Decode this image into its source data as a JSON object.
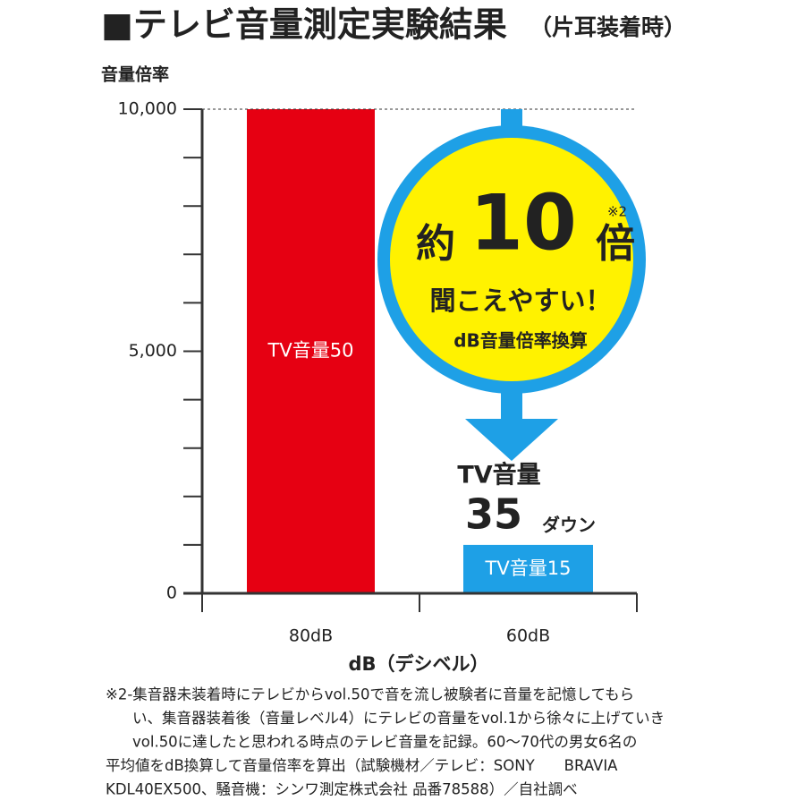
{
  "chart_data": {
    "type": "bar",
    "title": "■テレビ音量測定実験結果",
    "subtitle": "（片耳装着時）",
    "y_label": "音量倍率",
    "x_label": "dB（デシベル）",
    "categories": [
      "80dB",
      "60dB"
    ],
    "values": [
      10000,
      1000
    ],
    "bar_labels": [
      "TV音量50",
      "TV音量15"
    ],
    "colors": [
      "#e60012",
      "#1ea0e6"
    ],
    "ylim": [
      0,
      10000
    ],
    "yticks": [
      {
        "value": 0,
        "label": "0"
      },
      {
        "value": 5000,
        "label": "5,000"
      },
      {
        "value": 10000,
        "label": "10,000"
      }
    ],
    "yticks_minor": [
      1000,
      2000,
      3000,
      4000,
      6000,
      7000,
      8000,
      9000
    ],
    "annotations": {
      "approx": "約",
      "ratio": "10",
      "times": "倍",
      "note_mark": "※2",
      "easier": "聞こえやすい！",
      "method": "dB音量倍率換算",
      "tv_volume": "TV音量",
      "down_amount": "35",
      "down": "ダウン"
    },
    "footnote": [
      "※2-集音器未装着時にテレビからvol.50で音を流し被験者に音量を記憶してもら",
      "い、集音器装着後（音量レベル4）にテレビの音量をvol.1から徐々に上げていき",
      "vol.50に達したと思われる時点のテレビ音量を記録。60～70代の男女6名の",
      "平均値をdB換算して音量倍率を算出（試験機材／テレビ：SONY　　BRAVIA",
      "KDL40EX500、騒音機：シンワ測定株式会社 品番78588）／自社調べ"
    ]
  }
}
